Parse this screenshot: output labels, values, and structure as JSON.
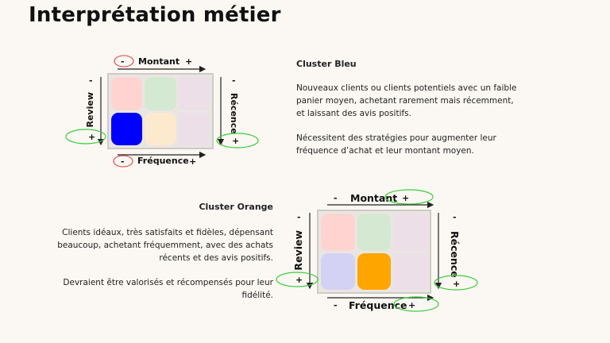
{
  "page": {
    "title": "Interprétation métier"
  },
  "diagram1": {
    "top_axis": {
      "minus": "-",
      "label": "Montant",
      "plus": "+"
    },
    "bottom_axis": {
      "minus": "-",
      "label": "Fréquence",
      "plus": "+"
    },
    "left_axis": {
      "minus": "-",
      "label": "Review",
      "plus": "+"
    },
    "right_axis": {
      "minus": "-",
      "label": "Récence",
      "plus": "+"
    },
    "cells": [
      {
        "name": "cell-top-left",
        "color": "#ffd3d0"
      },
      {
        "name": "cell-top-middle",
        "color": "#d5e8d2"
      },
      {
        "name": "cell-top-right",
        "color": "#ecdfe8"
      },
      {
        "name": "cell-bottom-left",
        "color": "#0000ff"
      },
      {
        "name": "cell-bottom-middle",
        "color": "#fde9cd"
      },
      {
        "name": "cell-bottom-right",
        "color": "#ecdfe8"
      }
    ]
  },
  "cluster_bleu": {
    "heading": "Cluster Bleu",
    "para1": "Nouveaux clients ou clients potentiels avec un faible panier moyen, achetant rarement mais récemment, et laissant des avis positifs.",
    "para2": "Nécessitent des stratégies pour augmenter leur fréquence d’achat et leur montant moyen."
  },
  "diagram2": {
    "top_axis": {
      "minus": "-",
      "label": "Montant",
      "plus": "+"
    },
    "bottom_axis": {
      "minus": "-",
      "label": "Fréquence",
      "plus": "+"
    },
    "left_axis": {
      "minus": "-",
      "label": "Review",
      "plus": "+"
    },
    "right_axis": {
      "minus": "-",
      "label": "Récence",
      "plus": "+"
    },
    "cells": [
      {
        "name": "cell-top-left",
        "color": "#ffd3d0"
      },
      {
        "name": "cell-top-middle",
        "color": "#d5e8d2"
      },
      {
        "name": "cell-top-right",
        "color": "#ecdfe8"
      },
      {
        "name": "cell-bottom-left",
        "color": "#d3d1f4"
      },
      {
        "name": "cell-bottom-middle",
        "color": "#ffa500"
      },
      {
        "name": "cell-bottom-right",
        "color": "#ecdfe8"
      }
    ]
  },
  "cluster_orange": {
    "heading": "Cluster Orange",
    "para1": "Clients idéaux, très satisfaits et fidèles, dépensant beaucoup, achetant fréquemment, avec des achats récents et des avis positifs.",
    "para2": "Devraient être valorisés et récompensés pour leur fidélité."
  },
  "colors": {
    "highlight_red": "#e04040",
    "highlight_green": "#3ccc3c",
    "arrow": "#222222"
  }
}
